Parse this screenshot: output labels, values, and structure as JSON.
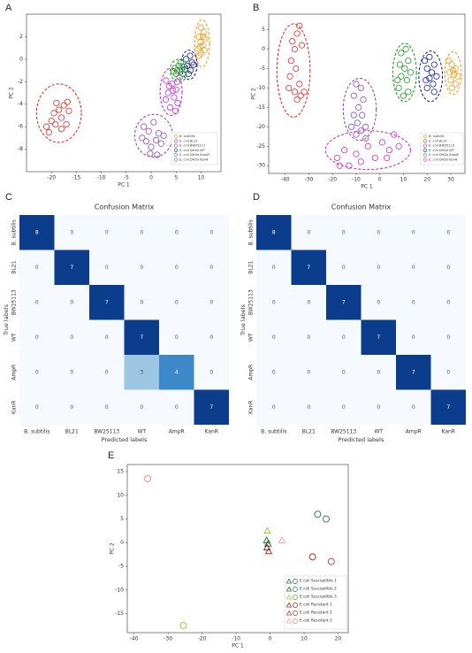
{
  "panels": {
    "A": "A",
    "B": "B",
    "C": "C",
    "D": "D",
    "E": "E"
  },
  "colors": {
    "bsubtilis": "#f39c1c",
    "bl21": "#e8292a",
    "bw25113": "#8b4fb0",
    "wt": "#1a1fa8",
    "amp": "#1e9a24",
    "kan": "#d12dd1",
    "heat_dark": "#0b3d8c",
    "heat_mid": "#3d88c8",
    "heat_light": "#9dc6e2",
    "heat_zero": "#f6fafe"
  },
  "chart_data": [
    {
      "id": "A",
      "type": "scatter",
      "xlabel": "PC 1",
      "ylabel": "PC 2",
      "xlim": [
        -25,
        14
      ],
      "ylim": [
        -10,
        4
      ],
      "xticks": [
        -20,
        -15,
        -10,
        -5,
        0,
        5,
        10
      ],
      "yticks": [
        2,
        0,
        -2,
        -4,
        -6,
        -8
      ],
      "legend_position": "lower-right",
      "legend": [
        "B. subtilis",
        "E. coli BL21",
        "E. coli BW25113",
        "E. coli DH5α WT",
        "E. coli DH5α AmpR",
        "E. coli DH5α KanR"
      ],
      "series": [
        {
          "color": "bsubtilis",
          "ellipse": [
            10.2,
            1.4,
            1.5,
            2.1
          ],
          "points": [
            [
              10,
              2.8
            ],
            [
              10.5,
              2.4
            ],
            [
              9.6,
              2.0
            ],
            [
              10.8,
              1.8
            ],
            [
              9.9,
              1.5
            ],
            [
              10.3,
              1.2
            ],
            [
              9.4,
              0.9
            ],
            [
              10.7,
              0.8
            ],
            [
              10,
              0.5
            ],
            [
              9.6,
              0.3
            ],
            [
              10.4,
              2.0
            ],
            [
              9.8,
              1.1
            ]
          ]
        },
        {
          "color": "bl21",
          "ellipse": [
            -18.5,
            -4.8,
            4.5,
            2.6
          ],
          "points": [
            [
              -21,
              -6
            ],
            [
              -20,
              -5.5
            ],
            [
              -19.5,
              -4.8
            ],
            [
              -18.5,
              -4.5
            ],
            [
              -18,
              -5.2
            ],
            [
              -17.5,
              -4.1
            ],
            [
              -19,
              -3.9
            ],
            [
              -17,
              -5.8
            ],
            [
              -16.5,
              -4.6
            ],
            [
              -20.5,
              -6.5
            ],
            [
              -18,
              -6.2
            ],
            [
              -16.8,
              -3.8
            ],
            [
              -19.2,
              -5.8
            ]
          ]
        },
        {
          "color": "bw25113",
          "ellipse": [
            0.5,
            -6.8,
            3.8,
            1.9
          ],
          "points": [
            [
              -1.5,
              -6
            ],
            [
              -0.5,
              -6.4
            ],
            [
              0.5,
              -5.6
            ],
            [
              1.5,
              -6.6
            ],
            [
              -1,
              -7.3
            ],
            [
              0,
              -7.8
            ],
            [
              1,
              -7.2
            ],
            [
              2,
              -7.5
            ],
            [
              -0.2,
              -8.4
            ],
            [
              1.2,
              -8.5
            ],
            [
              2.5,
              -6.8
            ],
            [
              -1.8,
              -7
            ]
          ]
        },
        {
          "color": "wt",
          "ellipse": [
            7.6,
            -0.5,
            1.6,
            1.3
          ],
          "points": [
            [
              7,
              0
            ],
            [
              7.8,
              0.3
            ],
            [
              8.2,
              -0.3
            ],
            [
              7.2,
              -0.6
            ],
            [
              7.9,
              -1
            ],
            [
              8.5,
              -0.5
            ],
            [
              6.8,
              -0.9
            ],
            [
              7.5,
              -1.3
            ]
          ]
        },
        {
          "color": "amp",
          "ellipse": [
            5.6,
            -1.0,
            1.8,
            1.0
          ],
          "points": [
            [
              4.8,
              -0.8
            ],
            [
              5.5,
              -0.6
            ],
            [
              6.1,
              -0.9
            ],
            [
              5,
              -1.3
            ],
            [
              6.3,
              -1.3
            ],
            [
              5.7,
              -1.6
            ],
            [
              4.5,
              -1.1
            ],
            [
              5.9,
              -0.3
            ],
            [
              5.2,
              -1.0
            ],
            [
              6.6,
              -0.7
            ]
          ]
        },
        {
          "color": "kan",
          "ellipse": [
            4.0,
            -2.9,
            2.2,
            2.1
          ],
          "points": [
            [
              3,
              -1.9
            ],
            [
              4.2,
              -2.2
            ],
            [
              5,
              -2.7
            ],
            [
              3.4,
              -3.0
            ],
            [
              4.6,
              -3.4
            ],
            [
              5.3,
              -3.9
            ],
            [
              3.8,
              -4.3
            ],
            [
              2.9,
              -3.6
            ],
            [
              4.4,
              -2.8
            ],
            [
              3.6,
              -2.4
            ],
            [
              5.2,
              -2.0
            ],
            [
              4.9,
              -4.6
            ]
          ]
        }
      ]
    },
    {
      "id": "B",
      "type": "scatter",
      "xlabel": "PC 1",
      "ylabel": "PC 2",
      "xlim": [
        -47,
        36
      ],
      "ylim": [
        -32,
        9
      ],
      "xticks": [
        -40,
        -30,
        -20,
        -10,
        0,
        10,
        20,
        30
      ],
      "yticks": [
        5,
        0,
        -5,
        -10,
        -15,
        -20,
        -25,
        -30
      ],
      "legend_position": "lower-right",
      "legend": [
        "B. subtilis",
        "E. coli BL21",
        "E. coli BW25113",
        "E. coli DH5α WT",
        "E. coli DH5α AmpR",
        "E. coli DH5α KanR"
      ],
      "series": [
        {
          "color": "bsubtilis",
          "ellipse": [
            31,
            -6.2,
            3.5,
            5.5
          ],
          "points": [
            [
              29,
              -3
            ],
            [
              30.5,
              -4
            ],
            [
              32,
              -5
            ],
            [
              29.5,
              -6
            ],
            [
              31.5,
              -6.5
            ],
            [
              33,
              -7
            ],
            [
              30,
              -8
            ],
            [
              32,
              -9
            ],
            [
              30.5,
              -10
            ],
            [
              31,
              -5.5
            ]
          ]
        },
        {
          "color": "bl21",
          "ellipse": [
            -36.5,
            -5.5,
            7,
            12
          ],
          "points": [
            [
              -34,
              6
            ],
            [
              -35,
              4
            ],
            [
              -37,
              2
            ],
            [
              -36,
              0
            ],
            [
              -33,
              1
            ],
            [
              -37.5,
              -3
            ],
            [
              -35.5,
              -5
            ],
            [
              -38,
              -7
            ],
            [
              -34,
              -9
            ],
            [
              -36,
              -11
            ],
            [
              -33.5,
              -12
            ],
            [
              -38.5,
              -10
            ],
            [
              -35,
              -13
            ],
            [
              -32,
              -11
            ]
          ]
        },
        {
          "color": "bw25113",
          "ellipse": [
            -8.5,
            -15.5,
            7,
            8
          ],
          "points": [
            [
              -10,
              -9
            ],
            [
              -8,
              -10
            ],
            [
              -11,
              -12
            ],
            [
              -7,
              -13
            ],
            [
              -9,
              -15
            ],
            [
              -11,
              -17
            ],
            [
              -7.5,
              -17
            ],
            [
              -9.5,
              -19
            ],
            [
              -12,
              -20
            ],
            [
              -8,
              -21
            ],
            [
              -10,
              -22
            ],
            [
              -6,
              -20
            ]
          ]
        },
        {
          "color": "wt",
          "ellipse": [
            21.5,
            -7,
            5,
            6.5
          ],
          "points": [
            [
              19,
              -3
            ],
            [
              21,
              -2
            ],
            [
              23,
              -4
            ],
            [
              20,
              -5
            ],
            [
              22,
              -6
            ],
            [
              24,
              -7
            ],
            [
              19.5,
              -8
            ],
            [
              22.5,
              -9
            ],
            [
              20,
              -10
            ],
            [
              23,
              -11
            ],
            [
              21,
              -7.5
            ]
          ]
        },
        {
          "color": "amp",
          "ellipse": [
            10.5,
            -6,
            5,
            7.5
          ],
          "points": [
            [
              9,
              -1
            ],
            [
              11,
              0
            ],
            [
              12,
              -3
            ],
            [
              8.5,
              -4
            ],
            [
              10.5,
              -5
            ],
            [
              13,
              -6
            ],
            [
              9,
              -7
            ],
            [
              11.5,
              -8
            ],
            [
              8,
              -10
            ],
            [
              12,
              -11
            ],
            [
              10,
              -12
            ],
            [
              7.5,
              -8
            ]
          ]
        },
        {
          "color": "kan",
          "ellipse": [
            -5,
            -26,
            18,
            5
          ],
          "points": [
            [
              -18,
              -28
            ],
            [
              -15,
              -26
            ],
            [
              -13,
              -30
            ],
            [
              -10,
              -27
            ],
            [
              -8,
              -29
            ],
            [
              -5,
              -25
            ],
            [
              -2,
              -28
            ],
            [
              1,
              -24
            ],
            [
              4,
              -26
            ],
            [
              6,
              -22
            ],
            [
              8,
              -25
            ],
            [
              -17,
              -30
            ],
            [
              -6,
              -23
            ],
            [
              3,
              -28
            ]
          ]
        }
      ]
    },
    {
      "id": "C",
      "type": "heatmap",
      "title": "Confusion Matrix",
      "xlabel": "Predicted labels",
      "ylabel": "True labels",
      "labels": [
        "B. subtilis",
        "BL21",
        "BW25113",
        "WT",
        "AmpR",
        "KanR"
      ],
      "matrix": [
        [
          8,
          0,
          0,
          0,
          0,
          0
        ],
        [
          0,
          7,
          0,
          0,
          0,
          0
        ],
        [
          0,
          0,
          7,
          0,
          0,
          0
        ],
        [
          0,
          0,
          0,
          7,
          0,
          0
        ],
        [
          0,
          0,
          0,
          3,
          4,
          0
        ],
        [
          0,
          0,
          0,
          0,
          0,
          7
        ]
      ]
    },
    {
      "id": "D",
      "type": "heatmap",
      "title": "Confusion Matrix",
      "xlabel": "Predicted labels",
      "ylabel": "True labels",
      "labels": [
        "B. subtilis",
        "BL21",
        "BW25113",
        "WT",
        "AmpR",
        "KanR"
      ],
      "matrix": [
        [
          8,
          0,
          0,
          0,
          0,
          0
        ],
        [
          0,
          7,
          0,
          0,
          0,
          0
        ],
        [
          0,
          0,
          7,
          0,
          0,
          0
        ],
        [
          0,
          0,
          0,
          7,
          0,
          0
        ],
        [
          0,
          0,
          0,
          0,
          7,
          0
        ],
        [
          0,
          0,
          0,
          0,
          0,
          7
        ]
      ]
    },
    {
      "id": "E",
      "type": "scatter",
      "xlabel": "PC 1",
      "ylabel": "PC 2",
      "xlim": [
        -42,
        23
      ],
      "ylim": [
        -19,
        16.5
      ],
      "xticks": [
        -40,
        -30,
        -20,
        -10,
        0,
        10,
        20
      ],
      "yticks": [
        15,
        10,
        5,
        0,
        -5,
        -10,
        -15
      ],
      "legend_position": "lower-right",
      "legend": [
        {
          "label": "E.coli Susceptible 1",
          "tri": "#1e5a25",
          "circ": "#1f7a3a"
        },
        {
          "label": "E.coli Susceptible 2",
          "tri": "#1e5a25",
          "circ": "#1f8a3a"
        },
        {
          "label": "E.coli Susceptible 3",
          "tri": "#9ac22c",
          "circ": "#5aa040"
        },
        {
          "label": "E.coli Resistant 1",
          "tri": "#7a1a1a",
          "circ": "#a02020"
        },
        {
          "label": "E.coli Resistant 2",
          "tri": "#c02525",
          "circ": "#d03030"
        },
        {
          "label": "E.coli Resistant 3",
          "tri": "#f0a090",
          "circ": "#f08070"
        }
      ],
      "triangles": [
        {
          "x": -0.8,
          "y": 2.5,
          "color": "#9ac22c"
        },
        {
          "x": -1.0,
          "y": 0.5,
          "color": "#1e5a25"
        },
        {
          "x": -0.6,
          "y": -0.2,
          "color": "#1e5a25"
        },
        {
          "x": -0.9,
          "y": -1.0,
          "color": "#7a1a1a"
        },
        {
          "x": -0.4,
          "y": -1.8,
          "color": "#c02525"
        },
        {
          "x": 3.5,
          "y": 0.5,
          "color": "#f0a090"
        }
      ],
      "circles": [
        {
          "x": -36,
          "y": 13.5,
          "color": "#f08070"
        },
        {
          "x": -25.5,
          "y": -17.5,
          "color": "#9ac22c"
        },
        {
          "x": 14,
          "y": 6,
          "color": "#1f7a3a"
        },
        {
          "x": 16.5,
          "y": 5,
          "color": "#1f7a3a"
        },
        {
          "x": 12.5,
          "y": -3,
          "color": "#a02020"
        },
        {
          "x": 18,
          "y": -4,
          "color": "#d03030"
        }
      ]
    }
  ]
}
